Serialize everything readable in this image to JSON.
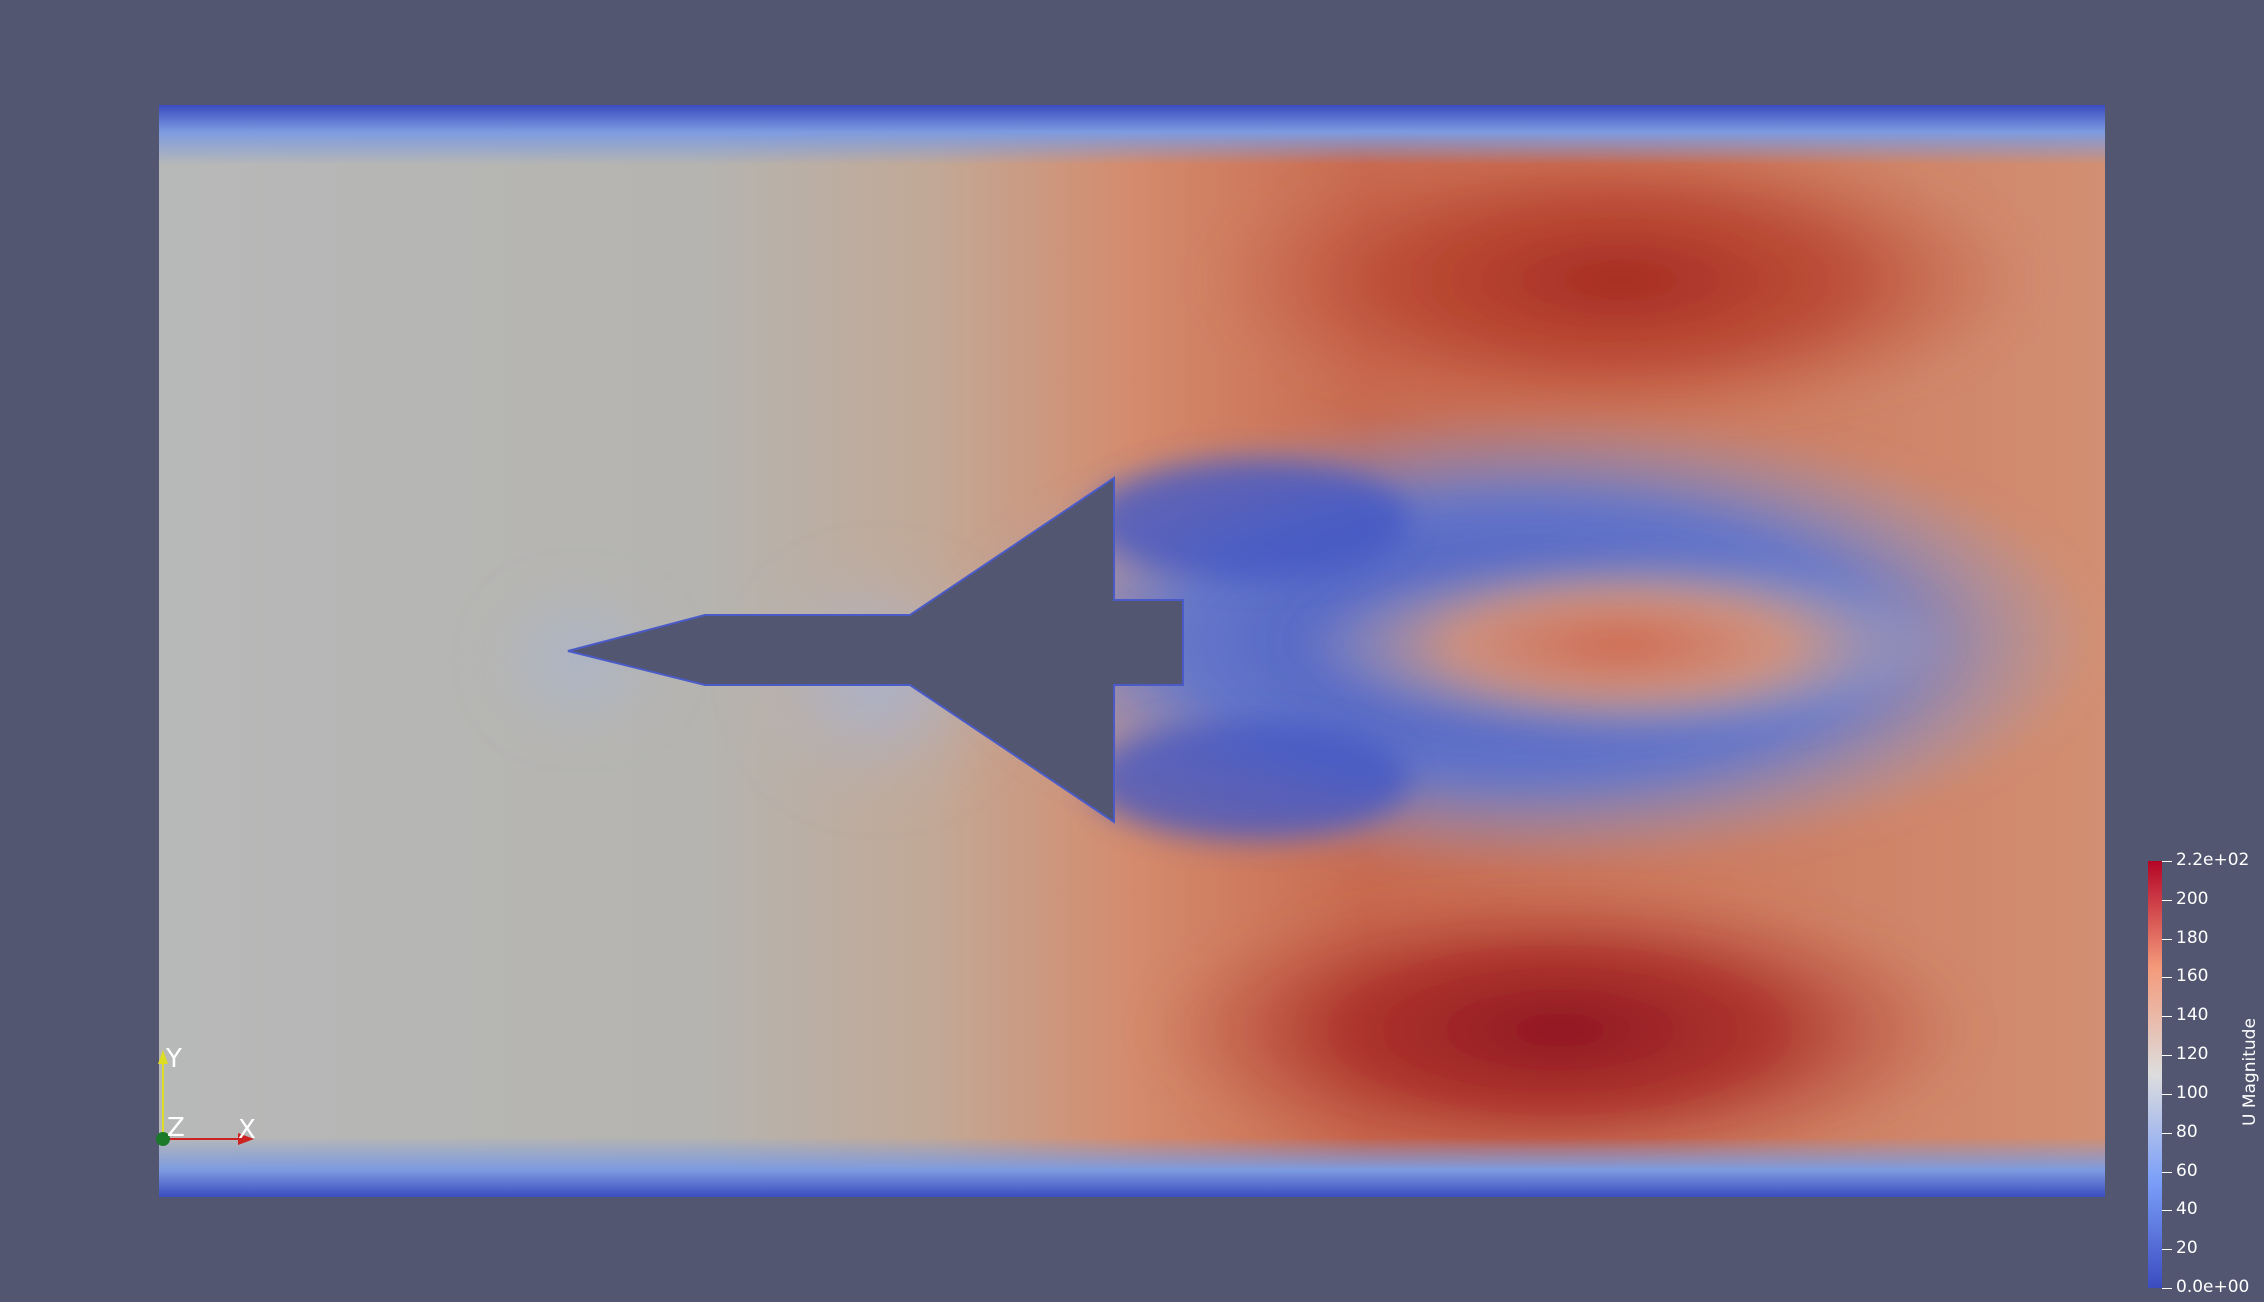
{
  "app": "ParaView render view",
  "field": "U Magnitude",
  "colorbar": {
    "title": "U Magnitude",
    "range": [
      0,
      220
    ],
    "max_label": "2.2e+02",
    "min_label": "0.0e+00",
    "ticks": [
      {
        "value": 220,
        "label": "2.2e+02"
      },
      {
        "value": 200,
        "label": "200"
      },
      {
        "value": 180,
        "label": "180"
      },
      {
        "value": 160,
        "label": "160"
      },
      {
        "value": 140,
        "label": "140"
      },
      {
        "value": 120,
        "label": "120"
      },
      {
        "value": 100,
        "label": "100"
      },
      {
        "value": 80,
        "label": "80"
      },
      {
        "value": 60,
        "label": "60"
      },
      {
        "value": 40,
        "label": "40"
      },
      {
        "value": 20,
        "label": "20"
      },
      {
        "value": 0,
        "label": "0.0e+00"
      }
    ],
    "colormap": [
      "#3b4cc0",
      "#dddddd",
      "#b40426"
    ]
  },
  "orientation_axes": {
    "x": "X",
    "y": "Y",
    "z": "Z"
  },
  "colors": {
    "background": "#525670",
    "x_axis": "#cc2222",
    "y_axis": "#dddd22",
    "z_axis": "#1a7a2a"
  }
}
